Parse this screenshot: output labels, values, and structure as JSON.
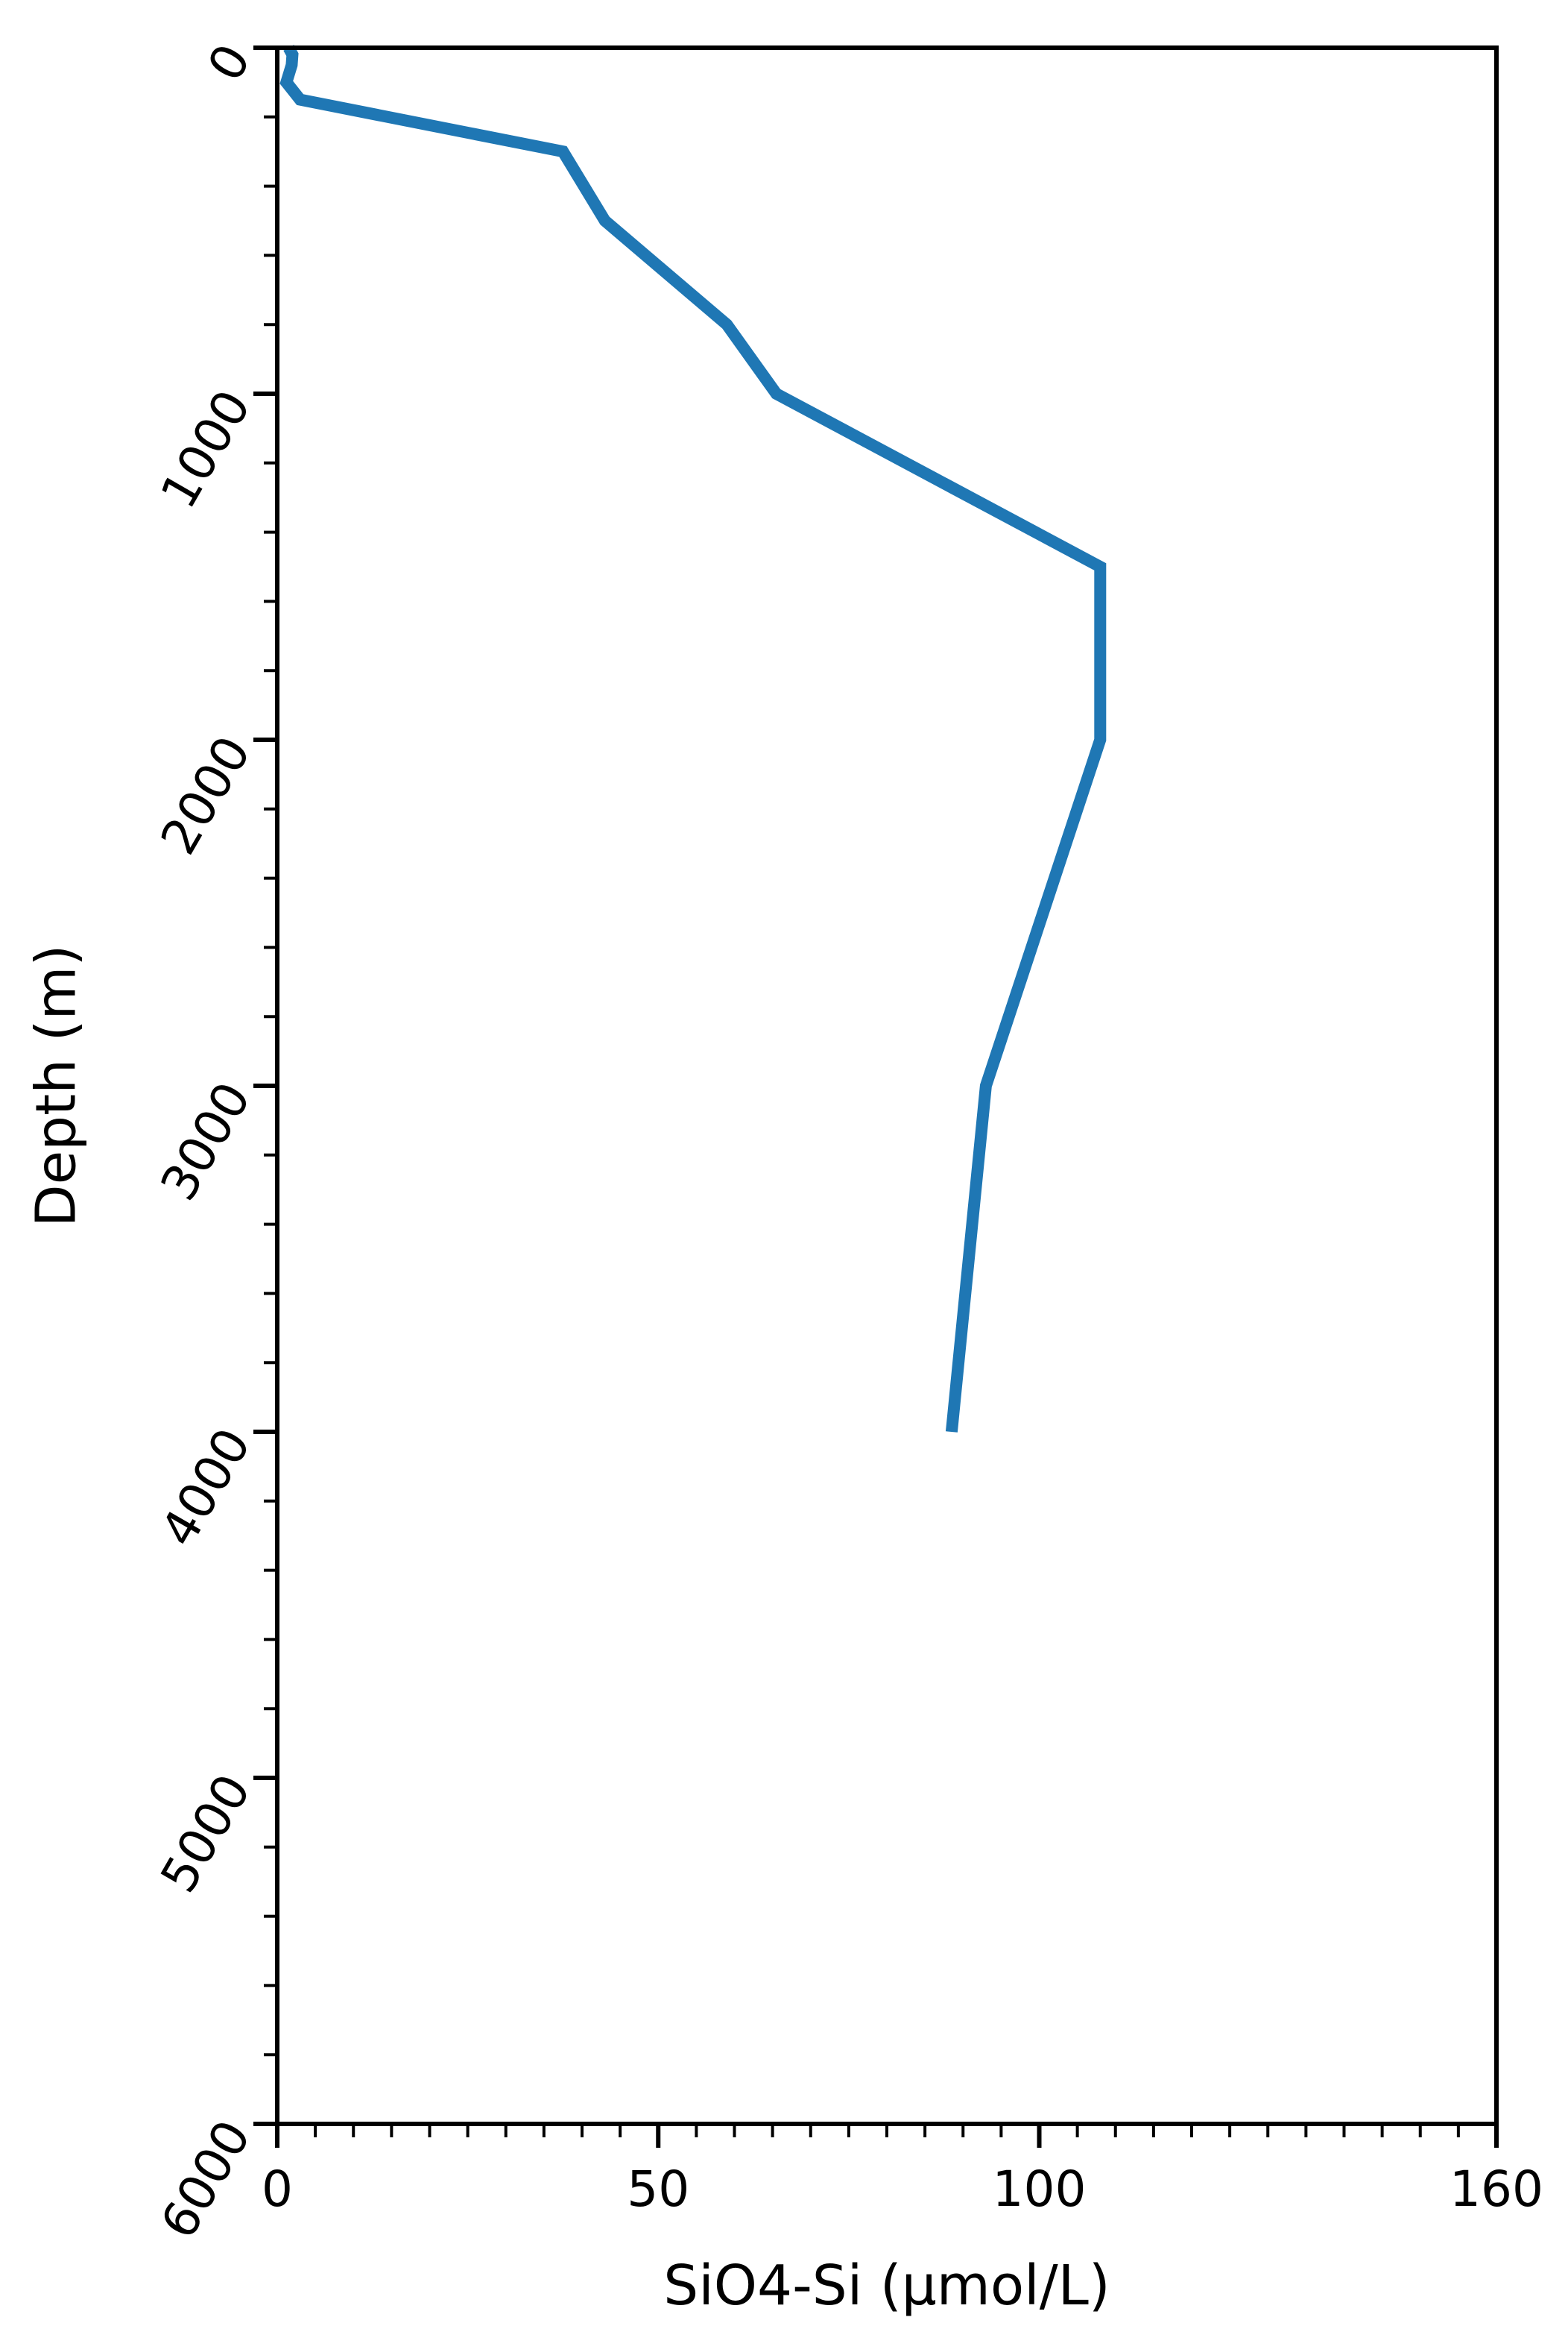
{
  "chart_data": {
    "type": "line",
    "title": "",
    "xlabel": "SiO4-Si (μmol/L)",
    "ylabel": "Depth (m)",
    "xlim": [
      0,
      160
    ],
    "ylim": [
      0,
      6000
    ],
    "y_inverted": true,
    "x_ticks": [
      0,
      50,
      100,
      160
    ],
    "y_ticks": [
      0,
      1000,
      2000,
      3000,
      4000,
      5000,
      6000
    ],
    "x_minor_step": 5,
    "y_minor_step": 200,
    "grid": false,
    "legend": "none",
    "series": [
      {
        "name": "SiO4-Si",
        "color": "#1f77b4",
        "x": [
          1.5,
          2.0,
          1.9,
          1.2,
          3.0,
          37.5,
          43.0,
          59.0,
          65.5,
          108.0,
          108.0,
          93.0,
          88.5
        ],
        "y": [
          0,
          20,
          50,
          100,
          150,
          300,
          500,
          800,
          1000,
          1500,
          2000,
          3000,
          4000
        ]
      }
    ]
  }
}
